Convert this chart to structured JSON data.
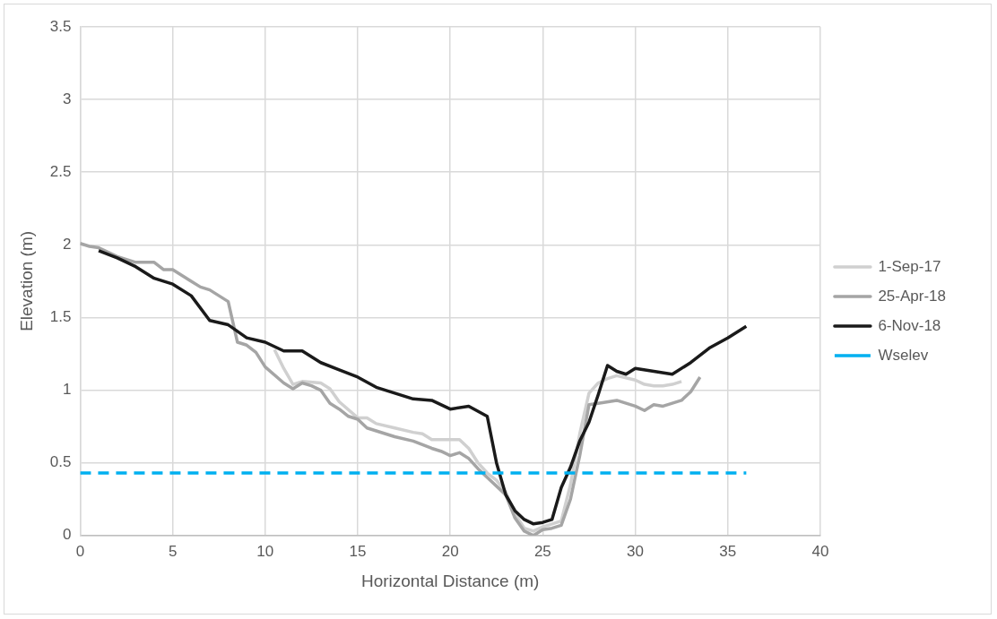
{
  "chart_data": {
    "type": "line",
    "xlabel": "Horizontal Distance (m)",
    "ylabel": "Elevation (m)",
    "xlim": [
      0,
      40
    ],
    "xticks": [
      0,
      5,
      10,
      15,
      20,
      25,
      30,
      35,
      40
    ],
    "ylim": [
      0,
      3.5
    ],
    "yticks": [
      0,
      0.5,
      1,
      1.5,
      2,
      2.5,
      3,
      3.5
    ],
    "grid": true,
    "legend": "right",
    "marker": "none",
    "series": [
      {
        "name": "1-Sep-17",
        "color": "#d0d0d0",
        "line_style": "solid",
        "x": [
          10.5,
          11,
          11.5,
          12,
          13,
          13.5,
          14,
          15,
          15.5,
          16,
          17,
          18,
          18.5,
          19,
          20,
          20.5,
          21,
          21.5,
          22,
          22.5,
          23,
          23.5,
          24,
          24.5,
          25,
          25.5,
          26,
          26.5,
          27,
          27.5,
          28,
          28.5,
          29,
          30,
          30.5,
          31,
          31.5,
          32,
          32.5
        ],
        "values": [
          1.28,
          1.15,
          1.04,
          1.06,
          1.05,
          1.01,
          0.92,
          0.81,
          0.81,
          0.77,
          0.74,
          0.71,
          0.7,
          0.66,
          0.66,
          0.66,
          0.6,
          0.5,
          0.43,
          0.38,
          0.3,
          0.15,
          0.05,
          0.03,
          0.06,
          0.08,
          0.1,
          0.35,
          0.7,
          0.98,
          1.05,
          1.08,
          1.1,
          1.07,
          1.04,
          1.03,
          1.03,
          1.04,
          1.06
        ]
      },
      {
        "name": "25-Apr-18",
        "color": "#a5a5a5",
        "line_style": "solid",
        "x": [
          0,
          0.5,
          1,
          2,
          3,
          4,
          4.5,
          5,
          6,
          6.5,
          7,
          8,
          8.5,
          9,
          9.5,
          10,
          11,
          11.5,
          12,
          12.5,
          13,
          13.5,
          14,
          14.5,
          15,
          15.5,
          16,
          17,
          18,
          19,
          19.5,
          20,
          20.5,
          21,
          21.5,
          22,
          23,
          23.5,
          24,
          24.5,
          25,
          25.5,
          26,
          26.5,
          27,
          27.5,
          28,
          29,
          30,
          30.5,
          31,
          31.5,
          32,
          32.5,
          33,
          33.5
        ],
        "values": [
          2.01,
          1.99,
          1.98,
          1.92,
          1.88,
          1.88,
          1.83,
          1.83,
          1.75,
          1.71,
          1.69,
          1.61,
          1.33,
          1.31,
          1.26,
          1.16,
          1.05,
          1.01,
          1.05,
          1.03,
          1.0,
          0.91,
          0.87,
          0.82,
          0.8,
          0.74,
          0.72,
          0.68,
          0.65,
          0.6,
          0.58,
          0.55,
          0.57,
          0.53,
          0.46,
          0.4,
          0.28,
          0.12,
          0.03,
          0.0,
          0.04,
          0.05,
          0.07,
          0.25,
          0.55,
          0.9,
          0.91,
          0.93,
          0.89,
          0.86,
          0.9,
          0.89,
          0.91,
          0.93,
          0.99,
          1.09
        ]
      },
      {
        "name": "6-Nov-18",
        "color": "#1a1a1a",
        "line_style": "solid",
        "x": [
          1,
          2,
          3,
          4,
          5,
          6,
          7,
          8,
          9,
          10,
          11,
          12,
          13,
          14,
          15,
          16,
          17,
          18,
          19,
          20,
          21,
          22,
          22.5,
          23,
          23.5,
          24,
          24.5,
          25,
          25.5,
          26,
          26.5,
          27,
          27.5,
          28,
          28.5,
          29,
          29.5,
          30,
          32,
          33,
          34,
          35,
          36
        ],
        "values": [
          1.96,
          1.91,
          1.85,
          1.77,
          1.73,
          1.65,
          1.48,
          1.45,
          1.36,
          1.33,
          1.27,
          1.27,
          1.19,
          1.14,
          1.09,
          1.02,
          0.98,
          0.94,
          0.93,
          0.87,
          0.89,
          0.82,
          0.5,
          0.28,
          0.17,
          0.11,
          0.08,
          0.09,
          0.11,
          0.33,
          0.47,
          0.65,
          0.78,
          0.97,
          1.17,
          1.13,
          1.11,
          1.15,
          1.11,
          1.19,
          1.29,
          1.36,
          1.44
        ]
      },
      {
        "name": "Wselev",
        "color": "#00b0f0",
        "line_style": "dashed",
        "x": [
          0,
          36
        ],
        "values": [
          0.43,
          0.43
        ]
      }
    ]
  }
}
